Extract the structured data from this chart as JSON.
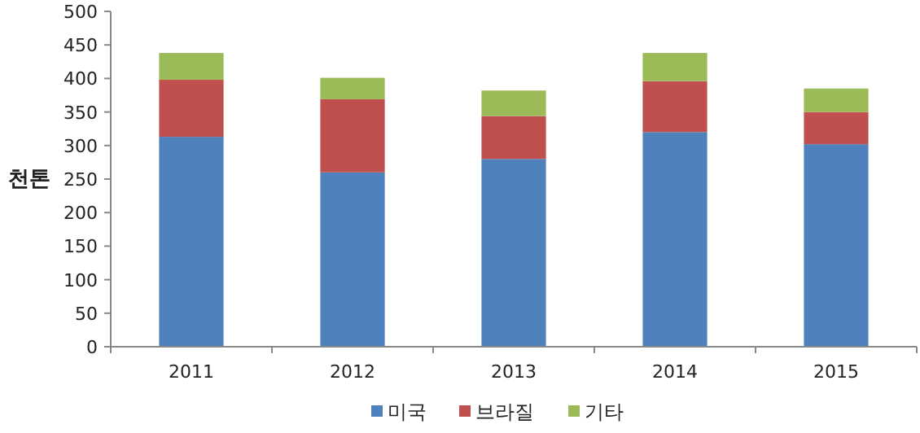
{
  "chart_data": {
    "type": "bar",
    "stacked": true,
    "ylabel": "천톤",
    "categories": [
      "2011",
      "2012",
      "2013",
      "2014",
      "2015"
    ],
    "ylim": [
      0,
      500
    ],
    "yticks": [
      0,
      50,
      100,
      150,
      200,
      250,
      300,
      350,
      400,
      450,
      500
    ],
    "legend": "bottom",
    "grid": false,
    "series": [
      {
        "name": "미국",
        "color": "#4f81bd",
        "values": [
          313,
          260,
          280,
          320,
          302
        ]
      },
      {
        "name": "브라질",
        "color": "#c0504d",
        "values": [
          85,
          109,
          64,
          76,
          48
        ]
      },
      {
        "name": "기타",
        "color": "#9bbb59",
        "values": [
          40,
          32,
          38,
          42,
          35
        ]
      }
    ]
  }
}
